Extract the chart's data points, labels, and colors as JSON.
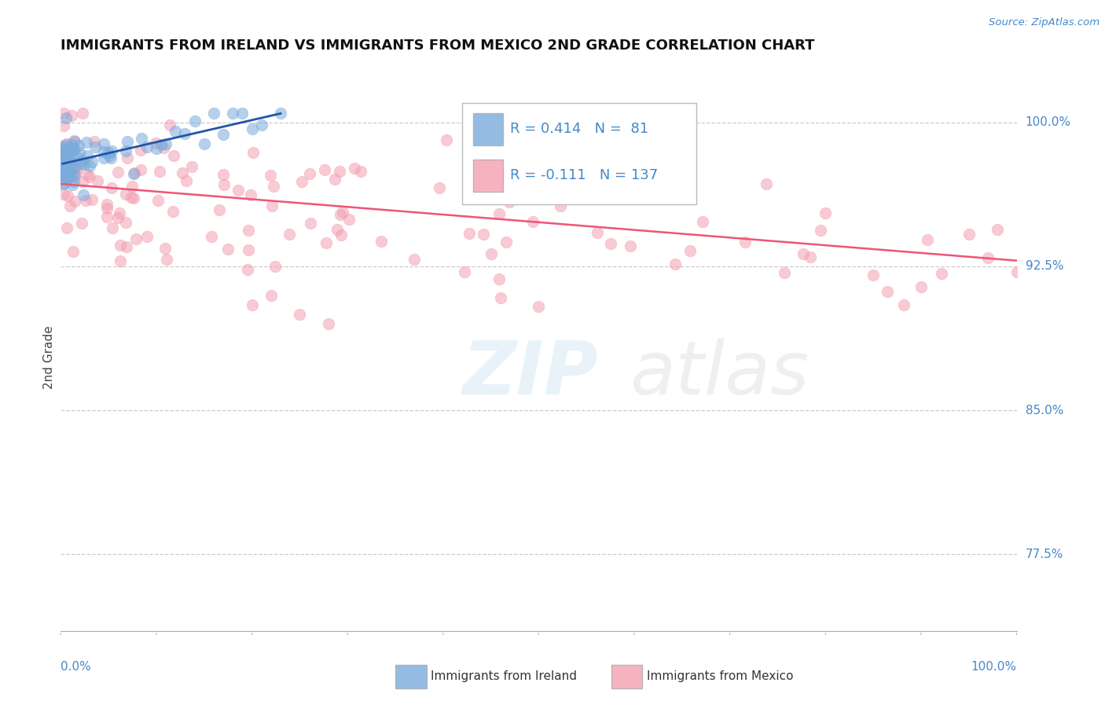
{
  "title": "IMMIGRANTS FROM IRELAND VS IMMIGRANTS FROM MEXICO 2ND GRADE CORRELATION CHART",
  "source": "Source: ZipAtlas.com",
  "ylabel": "2nd Grade",
  "legend_blue_label": "Immigrants from Ireland",
  "legend_pink_label": "Immigrants from Mexico",
  "blue_color": "#7AABDC",
  "pink_color": "#F4A0B0",
  "trendline_blue": "#2255AA",
  "trendline_pink": "#EE5577",
  "watermark_zip": "ZIP",
  "watermark_atlas": "atlas",
  "background": "#FFFFFF",
  "grid_color": "#CCCCCC",
  "axis_label_color": "#4488CC",
  "title_color": "#111111",
  "ytick_vals": [
    1.0,
    0.925,
    0.85,
    0.775
  ],
  "ytick_labels": [
    "100.0%",
    "92.5%",
    "85.0%",
    "77.5%"
  ],
  "xlim": [
    0.0,
    1.0
  ],
  "ylim": [
    0.735,
    1.02
  ]
}
